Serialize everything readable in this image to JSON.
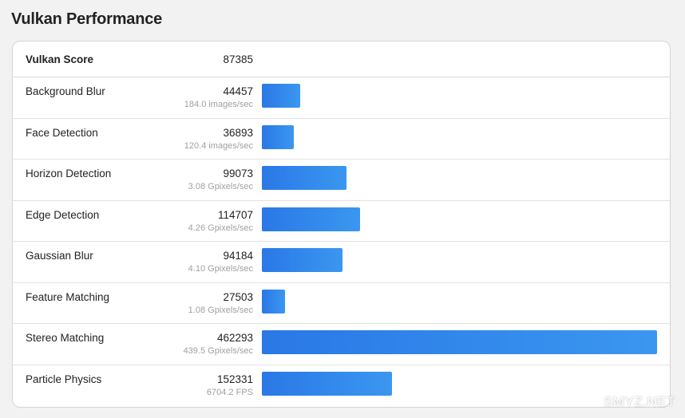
{
  "title": "Vulkan Performance",
  "score": {
    "label": "Vulkan Score",
    "value": "87385"
  },
  "rows": [
    {
      "name": "Background Blur",
      "score": "44457",
      "rate": "184.0 images/sec",
      "value": 44457
    },
    {
      "name": "Face Detection",
      "score": "36893",
      "rate": "120.4 images/sec",
      "value": 36893
    },
    {
      "name": "Horizon Detection",
      "score": "99073",
      "rate": "3.08 Gpixels/sec",
      "value": 99073
    },
    {
      "name": "Edge Detection",
      "score": "114707",
      "rate": "4.26 Gpixels/sec",
      "value": 114707
    },
    {
      "name": "Gaussian Blur",
      "score": "94184",
      "rate": "4.10 Gpixels/sec",
      "value": 94184
    },
    {
      "name": "Feature Matching",
      "score": "27503",
      "rate": "1.08 Gpixels/sec",
      "value": 27503
    },
    {
      "name": "Stereo Matching",
      "score": "462293",
      "rate": "439.5 Gpixels/sec",
      "value": 462293
    },
    {
      "name": "Particle Physics",
      "score": "152331",
      "rate": "6704.2 FPS",
      "value": 152331
    }
  ],
  "bar_max": 462293,
  "colors": {
    "bar_start": "#2a78e6",
    "bar_end": "#3a97f0"
  },
  "watermark": "SMYZ.NET"
}
